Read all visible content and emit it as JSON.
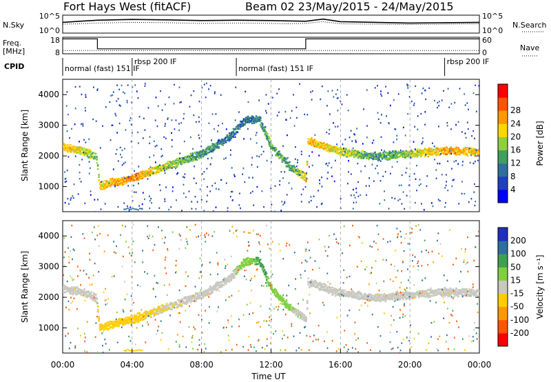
{
  "header": {
    "station": "Fort Hays West (fitACF)",
    "beam": "Beam 02 23/May/2015 - 24/May/2015"
  },
  "panels": {
    "noise": {
      "label_left": "N.Sky",
      "label_right": "N.Search",
      "ticks_left": [
        "10^5",
        "10^0"
      ],
      "ticks_right": [
        "10^5",
        "10^0"
      ]
    },
    "freq": {
      "label_left": "Freq.",
      "unit_left": "[MHz]",
      "label_right": "Nave",
      "ticks_left": [
        "18",
        "8"
      ],
      "ticks_right": [
        "60",
        "0"
      ]
    },
    "cpid": {
      "label": "CPID",
      "segments": [
        {
          "start_h": 0,
          "end_h": 4,
          "text": "normal (fast) 151 IF"
        },
        {
          "start_h": 4,
          "end_h": 10,
          "text": "rbsp 200 IF"
        },
        {
          "start_h": 10,
          "end_h": 22,
          "text": "normal (fast) 151 IF"
        },
        {
          "start_h": 22,
          "end_h": 24,
          "text": "rbsp 200 IF"
        }
      ]
    }
  },
  "axes": {
    "x_ticks": [
      "00:00",
      "04:00",
      "08:00",
      "12:00",
      "16:00",
      "20:00",
      "00:00"
    ],
    "x_label": "Time UT",
    "y_ticks": [
      "1000",
      "2000",
      "3000",
      "4000"
    ],
    "y_label": "Slant Range [km]"
  },
  "colorbars": {
    "power": {
      "label": "Power [dB]",
      "ticks": [
        "4",
        "8",
        "12",
        "16",
        "20",
        "24",
        "28"
      ],
      "colors": [
        "#0000ff",
        "#1f3fbf",
        "#2f6fa0",
        "#3f9f60",
        "#8fcf3f",
        "#ffd700",
        "#ff9900",
        "#ff5500",
        "#ff0000"
      ]
    },
    "velocity": {
      "label": "Velocity [m s⁻¹]",
      "ticks": [
        "200",
        "100",
        "50",
        "15",
        "-15",
        "-50",
        "-100",
        "-200"
      ],
      "colors": [
        "#1f2fbf",
        "#2f6fa0",
        "#3fa050",
        "#7fd03f",
        "#c8c8c0",
        "#ffcc00",
        "#ff9900",
        "#ff5500",
        "#ff0000"
      ]
    }
  },
  "chart_data": [
    {
      "type": "line",
      "title": "N.Sky / N.Search",
      "x": [
        0,
        1,
        2,
        4,
        6,
        8,
        10,
        12,
        13,
        14,
        15,
        16,
        18,
        20,
        22,
        24
      ],
      "series": [
        {
          "name": "N.Sky",
          "values": [
            3,
            3.3,
            3.6,
            3.8,
            3.7,
            3.5,
            3.6,
            3.5,
            3.4,
            3.3,
            3.9,
            3.2,
            3.0,
            2.8,
            2.9,
            3.0
          ]
        },
        {
          "name": "N.Search",
          "values": [
            2.5,
            2.6,
            2.8,
            3.0,
            2.9,
            2.7,
            2.8,
            2.7,
            2.6,
            2.7,
            3.2,
            2.6,
            2.5,
            2.4,
            2.5,
            2.6
          ]
        }
      ],
      "ylim": [
        0,
        5
      ],
      "yscale": "log"
    },
    {
      "type": "line",
      "title": "Freq. / Nave",
      "x": [
        0,
        2,
        2,
        14,
        14,
        24
      ],
      "series": [
        {
          "name": "Freq.",
          "values": [
            17,
            17,
            11,
            11,
            17,
            17
          ]
        },
        {
          "name": "Nave",
          "values": [
            10,
            10,
            10,
            10,
            10,
            10
          ]
        }
      ],
      "ylim": [
        8,
        18
      ]
    },
    {
      "type": "heatmap",
      "title": "Power [dB]",
      "xlabel": "Time UT",
      "ylabel": "Slant Range [km]",
      "xlim": [
        0,
        24
      ],
      "ylim": [
        180,
        4500
      ],
      "x": [
        0,
        1,
        1.9,
        2.1,
        4,
        6,
        8,
        9.5,
        10.5,
        11.3,
        12,
        13,
        14,
        14.1,
        16,
        18,
        20,
        22,
        24
      ],
      "y_center_km": [
        2300,
        2200,
        2000,
        1050,
        1300,
        1700,
        2100,
        2600,
        3200,
        3200,
        2300,
        1700,
        1300,
        2500,
        2150,
        2000,
        2100,
        2200,
        2150
      ],
      "power_db": [
        22,
        18,
        14,
        20,
        24,
        16,
        12,
        10,
        8,
        10,
        14,
        12,
        20,
        22,
        18,
        12,
        16,
        22,
        20
      ]
    },
    {
      "type": "heatmap",
      "title": "Velocity [m s⁻¹]",
      "xlabel": "Time UT",
      "ylabel": "Slant Range [km]",
      "xlim": [
        0,
        24
      ],
      "ylim": [
        180,
        4500
      ],
      "x": [
        0,
        1,
        1.9,
        2.1,
        4,
        6,
        8,
        9.5,
        10.5,
        11.3,
        12,
        13,
        14,
        14.1,
        16,
        18,
        20,
        22,
        24
      ],
      "y_center_km": [
        2300,
        2200,
        2000,
        1050,
        1300,
        1700,
        2100,
        2600,
        3200,
        3200,
        2300,
        1700,
        1300,
        2500,
        2150,
        2000,
        2100,
        2200,
        2150
      ],
      "velocity_ms": [
        0,
        0,
        0,
        -40,
        -30,
        -10,
        0,
        0,
        30,
        60,
        40,
        20,
        0,
        0,
        0,
        0,
        0,
        0,
        0
      ]
    }
  ]
}
